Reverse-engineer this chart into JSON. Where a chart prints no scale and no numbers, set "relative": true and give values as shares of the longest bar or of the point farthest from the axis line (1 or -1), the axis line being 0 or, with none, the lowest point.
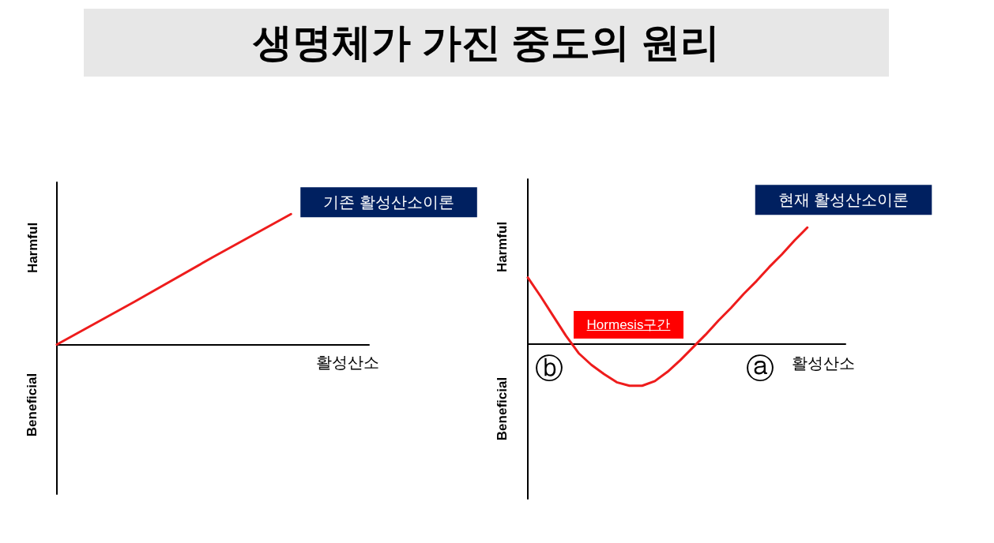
{
  "chart_data": [
    {
      "type": "line",
      "title": "생명체가 가진 중도의 원리",
      "xlabel": "활성산소",
      "ylabel": "Harmful",
      "annotations": [
        "Beneficial"
      ],
      "relative": true,
      "categories": [
        null,
        null,
        null,
        null,
        null
      ],
      "series": [
        {
          "name": "기존 활성산소이론",
          "color": "#ee1c1c",
          "values": [
            0,
            0.33,
            0.67,
            1,
            null
          ]
        }
      ]
    },
    {
      "type": "line",
      "xlabel": "활성산소",
      "ylabel": "Harmful",
      "annotations": [
        "Beneficial",
        "Hormesis구간",
        "ⓑ",
        "ⓐ"
      ],
      "relative": true,
      "categories": [
        null,
        null,
        null,
        null,
        null,
        null,
        null,
        null,
        null,
        null,
        null,
        null,
        null,
        null,
        null,
        null,
        null,
        null,
        null,
        null,
        null,
        null,
        null,
        null,
        null,
        null
      ],
      "series": [
        {
          "name": "현재 활성산소이론",
          "color": "#ee1c1c",
          "values": [
            0.57,
            0.41,
            0.24,
            0.07,
            -0.08,
            -0.18,
            -0.26,
            -0.33,
            -0.36,
            -0.36,
            -0.32,
            -0.24,
            -0.14,
            -0.03,
            0.08,
            0.2,
            0.31,
            0.43,
            0.54,
            0.66,
            0.77,
            0.89,
            1,
            null,
            null,
            null
          ]
        }
      ]
    }
  ]
}
